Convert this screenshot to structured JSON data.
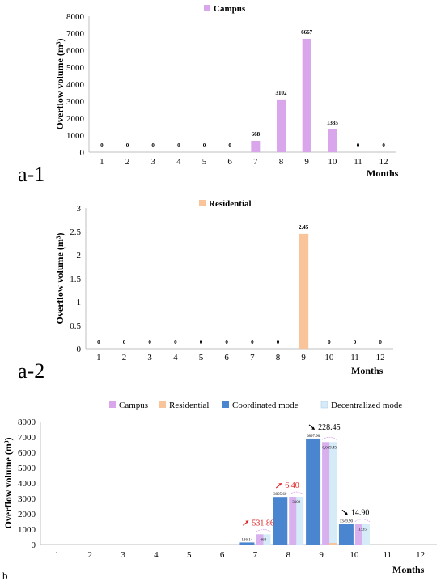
{
  "chart_data": [
    {
      "panel": "a-1",
      "type": "bar",
      "categories": [
        "1",
        "2",
        "3",
        "4",
        "5",
        "6",
        "7",
        "8",
        "9",
        "10",
        "11",
        "12"
      ],
      "series": [
        {
          "name": "Campus",
          "values": [
            0,
            0,
            0,
            0,
            0,
            0,
            668,
            3102,
            6667,
            1335,
            0,
            0
          ],
          "color": "#d9a6ec"
        }
      ],
      "data_labels": [
        "0",
        "0",
        "0",
        "0",
        "0",
        "0",
        "668",
        "3102",
        "6667",
        "1335",
        "0",
        "0"
      ],
      "ylabel": "Overflow volume (m³)",
      "xlabel": "Months",
      "ylim": [
        0,
        8000
      ],
      "yticks": [
        "0",
        "1000",
        "2000",
        "3000",
        "4000",
        "5000",
        "6000",
        "7000",
        "8000"
      ],
      "legend_position": "top-center",
      "grid": false
    },
    {
      "panel": "a-2",
      "type": "bar",
      "categories": [
        "1",
        "2",
        "3",
        "4",
        "5",
        "6",
        "7",
        "8",
        "9",
        "10",
        "11",
        "12"
      ],
      "series": [
        {
          "name": "Residential",
          "values": [
            0,
            0,
            0,
            0,
            0,
            0,
            0,
            0,
            2.45,
            0,
            0,
            0
          ],
          "color": "#f9c49a"
        }
      ],
      "data_labels": [
        "0",
        "0",
        "0",
        "0",
        "0",
        "0",
        "0",
        "0",
        "2.45",
        "0",
        "0",
        "0"
      ],
      "ylabel": "Overflow volume (m³)",
      "xlabel": "Months",
      "ylim": [
        0,
        3
      ],
      "yticks": [
        "0",
        "0.5",
        "1",
        "1.5",
        "2",
        "2.5",
        "3"
      ],
      "legend_position": "top-center",
      "grid": false
    },
    {
      "panel": "b",
      "type": "bar",
      "categories": [
        "1",
        "2",
        "3",
        "4",
        "5",
        "6",
        "7",
        "8",
        "9",
        "10",
        "11",
        "12"
      ],
      "series": [
        {
          "name": "Campus",
          "values": [
            0,
            0,
            0,
            0,
            0,
            0,
            668,
            3102,
            6667,
            1335,
            0,
            0
          ],
          "color": "#d9a6ec"
        },
        {
          "name": "Residential",
          "values": [
            0,
            0,
            0,
            0,
            0,
            0,
            0,
            0,
            2.45,
            0,
            0,
            0
          ],
          "color": "#f9c49a"
        },
        {
          "name": "Coordinated mode",
          "values": [
            0,
            0,
            0,
            0,
            0,
            0,
            136.14,
            3095.6,
            6897.9,
            1349.9,
            0,
            0
          ],
          "color": "#4a86cf"
        },
        {
          "name": "Decentralized mode",
          "values": [
            0,
            0,
            0,
            0,
            0,
            0,
            668,
            3102,
            6669.45,
            1335,
            0,
            0
          ],
          "color": "#d6ebf8"
        }
      ],
      "coordinated_labels": [
        "",
        "",
        "",
        "",
        "",
        "",
        "136.14",
        "3095.60",
        "6897.90",
        "1349.90",
        "",
        ""
      ],
      "decentralized_labels": [
        "",
        "",
        "",
        "",
        "",
        "",
        "668",
        "3102",
        "6,669.45",
        "1335",
        "",
        ""
      ],
      "annotations": [
        {
          "month": "7",
          "text": "531.86",
          "color": "#e02020"
        },
        {
          "month": "8",
          "text": "6.40",
          "color": "#e02020"
        },
        {
          "month": "9",
          "text": "228.45",
          "color": "#000000"
        },
        {
          "month": "10",
          "text": "14.90",
          "color": "#000000"
        }
      ],
      "ylabel": "Overflow volume (m³)",
      "xlabel": "Months",
      "ylim": [
        0,
        8000
      ],
      "yticks": [
        "0",
        "1000",
        "2000",
        "3000",
        "4000",
        "5000",
        "6000",
        "7000",
        "8000"
      ],
      "legend_position": "top-center",
      "grid": false
    }
  ],
  "panel_letters": {
    "a1": "a-1",
    "a2": "a-2",
    "b": "b"
  }
}
